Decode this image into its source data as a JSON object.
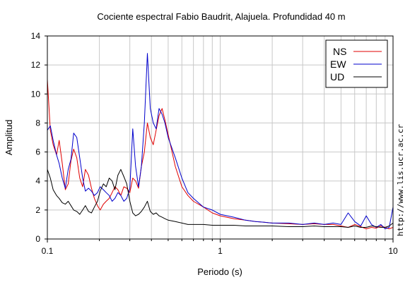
{
  "chart_data": {
    "type": "line",
    "title": "Cociente espectral Fabio Baudrit, Alajuela. Profundidad 40 m",
    "xlabel": "Periodo (s)",
    "ylabel": "Amplitud",
    "xscale": "log",
    "xlim": [
      0.1,
      10
    ],
    "ylim": [
      0,
      14
    ],
    "x_ticks": [
      0.1,
      1,
      10
    ],
    "x_tick_labels": [
      "0.1",
      "1",
      "10"
    ],
    "y_ticks": [
      0,
      2,
      4,
      6,
      8,
      10,
      12,
      14
    ],
    "y_tick_labels": [
      "0",
      "2",
      "4",
      "6",
      "8",
      "10",
      "12",
      "14"
    ],
    "grid": true,
    "legend_position": "top-right",
    "watermark": "http://www.lis.ucr.ac.cr",
    "series": [
      {
        "name": "NS",
        "color": "#e00000",
        "x": [
          0.1,
          0.104,
          0.108,
          0.113,
          0.117,
          0.122,
          0.127,
          0.132,
          0.137,
          0.142,
          0.148,
          0.154,
          0.16,
          0.166,
          0.173,
          0.18,
          0.187,
          0.195,
          0.202,
          0.211,
          0.219,
          0.228,
          0.237,
          0.246,
          0.256,
          0.266,
          0.277,
          0.288,
          0.3,
          0.312,
          0.324,
          0.337,
          0.35,
          0.364,
          0.379,
          0.394,
          0.41,
          0.426,
          0.443,
          0.461,
          0.479,
          0.5,
          0.55,
          0.6,
          0.65,
          0.7,
          0.8,
          0.9,
          1.0,
          1.2,
          1.4,
          1.6,
          1.8,
          2.0,
          2.5,
          3.0,
          3.5,
          4.0,
          4.5,
          5.0,
          5.5,
          6.0,
          6.5,
          7.0,
          7.5,
          8.0,
          8.5,
          9.0,
          9.5,
          10.0
        ],
        "y": [
          11.0,
          7.5,
          6.5,
          5.8,
          6.8,
          5.2,
          3.4,
          3.8,
          5.4,
          6.2,
          5.6,
          4.2,
          3.6,
          4.8,
          4.4,
          3.5,
          2.8,
          2.3,
          2.0,
          2.4,
          2.6,
          2.8,
          3.2,
          3.6,
          3.4,
          3.0,
          3.6,
          3.5,
          3.2,
          4.2,
          4.0,
          3.5,
          5.0,
          6.0,
          8.0,
          7.0,
          6.5,
          7.5,
          8.5,
          9.0,
          8.2,
          7.2,
          5.0,
          3.6,
          3.0,
          2.6,
          2.2,
          1.8,
          1.6,
          1.4,
          1.3,
          1.2,
          1.15,
          1.1,
          1.05,
          1.0,
          1.05,
          1.0,
          1.0,
          0.9,
          0.8,
          1.0,
          0.85,
          0.7,
          0.8,
          0.75,
          0.9,
          0.8,
          0.7,
          0.8
        ]
      },
      {
        "name": "EW",
        "color": "#0000cc",
        "x": [
          0.1,
          0.104,
          0.108,
          0.113,
          0.117,
          0.122,
          0.127,
          0.132,
          0.137,
          0.142,
          0.148,
          0.154,
          0.16,
          0.166,
          0.173,
          0.18,
          0.187,
          0.195,
          0.202,
          0.211,
          0.219,
          0.228,
          0.237,
          0.246,
          0.256,
          0.266,
          0.277,
          0.288,
          0.3,
          0.312,
          0.324,
          0.337,
          0.35,
          0.364,
          0.379,
          0.394,
          0.41,
          0.426,
          0.443,
          0.461,
          0.479,
          0.5,
          0.55,
          0.6,
          0.65,
          0.7,
          0.8,
          0.9,
          1.0,
          1.2,
          1.4,
          1.6,
          1.8,
          2.0,
          2.5,
          3.0,
          3.5,
          4.0,
          4.5,
          5.0,
          5.5,
          6.0,
          6.5,
          7.0,
          7.5,
          8.0,
          8.5,
          9.0,
          9.5,
          10.0
        ],
        "y": [
          7.5,
          7.8,
          6.8,
          5.8,
          5.2,
          4.2,
          3.5,
          4.8,
          5.5,
          7.3,
          7.0,
          5.6,
          4.2,
          3.3,
          3.5,
          3.3,
          3.0,
          3.2,
          3.6,
          3.4,
          3.2,
          3.0,
          2.6,
          2.8,
          3.2,
          3.0,
          2.6,
          2.8,
          3.5,
          7.6,
          5.0,
          3.6,
          5.0,
          8.0,
          12.8,
          9.0,
          8.0,
          7.6,
          9.0,
          8.6,
          8.0,
          7.0,
          5.6,
          4.2,
          3.2,
          2.8,
          2.2,
          2.0,
          1.7,
          1.5,
          1.3,
          1.2,
          1.15,
          1.1,
          1.1,
          1.0,
          1.1,
          1.0,
          1.1,
          1.0,
          1.8,
          1.2,
          0.9,
          1.6,
          1.0,
          0.8,
          1.0,
          0.7,
          0.8,
          2.2
        ]
      },
      {
        "name": "UD",
        "color": "#000000",
        "x": [
          0.1,
          0.104,
          0.108,
          0.113,
          0.117,
          0.122,
          0.127,
          0.132,
          0.137,
          0.142,
          0.148,
          0.154,
          0.16,
          0.166,
          0.173,
          0.18,
          0.187,
          0.195,
          0.202,
          0.211,
          0.219,
          0.228,
          0.237,
          0.246,
          0.256,
          0.266,
          0.277,
          0.288,
          0.3,
          0.312,
          0.324,
          0.337,
          0.35,
          0.364,
          0.379,
          0.394,
          0.41,
          0.426,
          0.443,
          0.461,
          0.479,
          0.5,
          0.55,
          0.6,
          0.65,
          0.7,
          0.8,
          0.9,
          1.0,
          1.2,
          1.4,
          1.6,
          1.8,
          2.0,
          2.5,
          3.0,
          3.5,
          4.0,
          4.5,
          5.0,
          5.5,
          6.0,
          6.5,
          7.0,
          7.5,
          8.0,
          8.5,
          9.0,
          9.5,
          10.0
        ],
        "y": [
          4.8,
          4.2,
          3.4,
          3.0,
          2.8,
          2.5,
          2.4,
          2.6,
          2.3,
          2.0,
          1.9,
          1.7,
          2.0,
          2.3,
          1.9,
          1.8,
          2.2,
          2.6,
          3.3,
          3.8,
          3.6,
          4.2,
          4.0,
          3.4,
          4.4,
          4.8,
          4.3,
          3.8,
          2.6,
          1.8,
          1.6,
          1.7,
          1.9,
          2.2,
          2.6,
          1.9,
          1.7,
          1.8,
          1.6,
          1.5,
          1.4,
          1.3,
          1.2,
          1.1,
          1.0,
          1.0,
          1.0,
          0.95,
          0.95,
          0.95,
          0.9,
          0.9,
          0.9,
          0.9,
          0.85,
          0.85,
          0.9,
          0.85,
          0.85,
          0.85,
          0.8,
          0.9,
          0.8,
          0.8,
          0.9,
          0.85,
          0.8,
          0.8,
          0.9,
          1.1
        ]
      }
    ]
  }
}
